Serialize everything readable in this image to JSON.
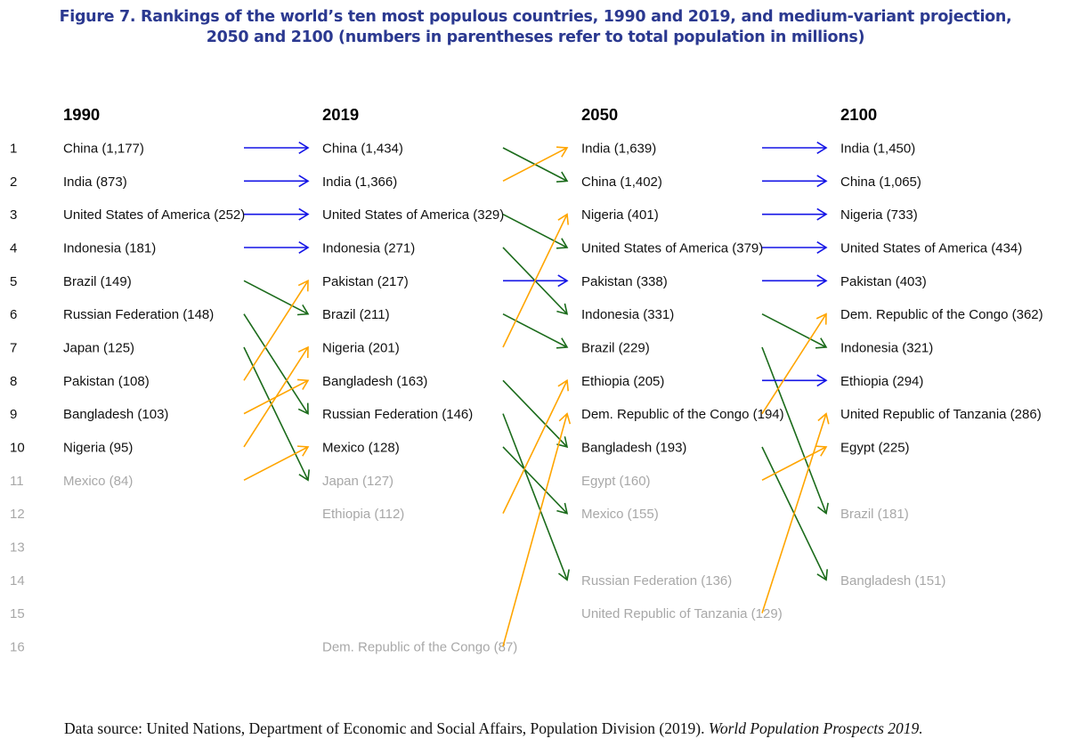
{
  "title_line1": "Figure 7. Rankings of the world’s ten most populous countries, 1990 and 2019, and medium-variant projection,",
  "title_line2": "2050 and 2100 (numbers in parentheses refer to total population in millions)",
  "footer": {
    "source_text": "Data source: United Nations, Department of Economic and Social Affairs, Population Division (2019). ",
    "source_italic": "World Population Prospects 2019."
  },
  "colors": {
    "title": "#2B3990",
    "same_rank": "#1414E6",
    "rank_down": "#1B6B1B",
    "rank_up": "#FFA500",
    "top_ten_text": "#111111",
    "outside_top_ten_text": "#A8A8A8"
  },
  "chart_data": {
    "type": "table",
    "title": "Rankings of the world’s ten most populous countries, 1990 and 2019, and medium-variant projection, 2050 and 2100",
    "unit": "millions",
    "ranks": [
      1,
      2,
      3,
      4,
      5,
      6,
      7,
      8,
      9,
      10,
      11,
      12,
      13,
      14,
      15,
      16
    ],
    "top_n": 10,
    "columns": [
      {
        "year": "1990",
        "entries": [
          {
            "rank": 1,
            "country": "China",
            "pop": "1,177"
          },
          {
            "rank": 2,
            "country": "India",
            "pop": "873"
          },
          {
            "rank": 3,
            "country": "United States of America",
            "pop": "252"
          },
          {
            "rank": 4,
            "country": "Indonesia",
            "pop": "181"
          },
          {
            "rank": 5,
            "country": "Brazil",
            "pop": "149"
          },
          {
            "rank": 6,
            "country": "Russian Federation",
            "pop": "148"
          },
          {
            "rank": 7,
            "country": "Japan",
            "pop": "125"
          },
          {
            "rank": 8,
            "country": "Pakistan",
            "pop": "108"
          },
          {
            "rank": 9,
            "country": "Bangladesh",
            "pop": "103"
          },
          {
            "rank": 10,
            "country": "Nigeria",
            "pop": "95"
          },
          {
            "rank": 11,
            "country": "Mexico",
            "pop": "84"
          }
        ]
      },
      {
        "year": "2019",
        "entries": [
          {
            "rank": 1,
            "country": "China",
            "pop": "1,434"
          },
          {
            "rank": 2,
            "country": "India",
            "pop": "1,366"
          },
          {
            "rank": 3,
            "country": "United States of America",
            "pop": "329"
          },
          {
            "rank": 4,
            "country": "Indonesia",
            "pop": "271"
          },
          {
            "rank": 5,
            "country": "Pakistan",
            "pop": "217"
          },
          {
            "rank": 6,
            "country": "Brazil",
            "pop": "211"
          },
          {
            "rank": 7,
            "country": "Nigeria",
            "pop": "201"
          },
          {
            "rank": 8,
            "country": "Bangladesh",
            "pop": "163"
          },
          {
            "rank": 9,
            "country": "Russian Federation",
            "pop": "146"
          },
          {
            "rank": 10,
            "country": "Mexico",
            "pop": "128"
          },
          {
            "rank": 11,
            "country": "Japan",
            "pop": "127"
          },
          {
            "rank": 12,
            "country": "Ethiopia",
            "pop": "112"
          },
          {
            "rank": 16,
            "country": "Dem. Republic of the Congo",
            "pop": "87"
          }
        ]
      },
      {
        "year": "2050",
        "entries": [
          {
            "rank": 1,
            "country": "India",
            "pop": "1,639"
          },
          {
            "rank": 2,
            "country": "China",
            "pop": "1,402"
          },
          {
            "rank": 3,
            "country": "Nigeria",
            "pop": "401"
          },
          {
            "rank": 4,
            "country": "United States of America",
            "pop": "379"
          },
          {
            "rank": 5,
            "country": "Pakistan",
            "pop": "338"
          },
          {
            "rank": 6,
            "country": "Indonesia",
            "pop": "331"
          },
          {
            "rank": 7,
            "country": "Brazil",
            "pop": "229"
          },
          {
            "rank": 8,
            "country": "Ethiopia",
            "pop": "205"
          },
          {
            "rank": 9,
            "country": "Dem. Republic of the Congo",
            "pop": "194"
          },
          {
            "rank": 10,
            "country": "Bangladesh",
            "pop": "193"
          },
          {
            "rank": 11,
            "country": "Egypt",
            "pop": "160"
          },
          {
            "rank": 12,
            "country": "Mexico",
            "pop": "155"
          },
          {
            "rank": 14,
            "country": "Russian Federation",
            "pop": "136"
          },
          {
            "rank": 15,
            "country": "United Republic of Tanzania",
            "pop": "129"
          }
        ]
      },
      {
        "year": "2100",
        "entries": [
          {
            "rank": 1,
            "country": "India",
            "pop": "1,450"
          },
          {
            "rank": 2,
            "country": "China",
            "pop": "1,065"
          },
          {
            "rank": 3,
            "country": "Nigeria",
            "pop": "733"
          },
          {
            "rank": 4,
            "country": "United States of America",
            "pop": "434"
          },
          {
            "rank": 5,
            "country": "Pakistan",
            "pop": "403"
          },
          {
            "rank": 6,
            "country": "Dem. Republic of the Congo",
            "pop": "362"
          },
          {
            "rank": 7,
            "country": "Indonesia",
            "pop": "321"
          },
          {
            "rank": 8,
            "country": "Ethiopia",
            "pop": "294"
          },
          {
            "rank": 9,
            "country": "United Republic of Tanzania",
            "pop": "286"
          },
          {
            "rank": 10,
            "country": "Egypt",
            "pop": "225"
          },
          {
            "rank": 12,
            "country": "Brazil",
            "pop": "181"
          },
          {
            "rank": 14,
            "country": "Bangladesh",
            "pop": "151"
          }
        ]
      }
    ],
    "transitions": [
      {
        "from_year": "1990",
        "to_year": "2019",
        "moves": [
          {
            "country": "China",
            "from": 1,
            "to": 1
          },
          {
            "country": "India",
            "from": 2,
            "to": 2
          },
          {
            "country": "United States of America",
            "from": 3,
            "to": 3
          },
          {
            "country": "Indonesia",
            "from": 4,
            "to": 4
          },
          {
            "country": "Brazil",
            "from": 5,
            "to": 6
          },
          {
            "country": "Russian Federation",
            "from": 6,
            "to": 9
          },
          {
            "country": "Japan",
            "from": 7,
            "to": 11
          },
          {
            "country": "Pakistan",
            "from": 8,
            "to": 5
          },
          {
            "country": "Bangladesh",
            "from": 9,
            "to": 8
          },
          {
            "country": "Nigeria",
            "from": 10,
            "to": 7
          },
          {
            "country": "Mexico",
            "from": 11,
            "to": 10
          }
        ]
      },
      {
        "from_year": "2019",
        "to_year": "2050",
        "moves": [
          {
            "country": "China",
            "from": 1,
            "to": 2
          },
          {
            "country": "India",
            "from": 2,
            "to": 1
          },
          {
            "country": "United States of America",
            "from": 3,
            "to": 4
          },
          {
            "country": "Indonesia",
            "from": 4,
            "to": 6
          },
          {
            "country": "Pakistan",
            "from": 5,
            "to": 5
          },
          {
            "country": "Brazil",
            "from": 6,
            "to": 7
          },
          {
            "country": "Nigeria",
            "from": 7,
            "to": 3
          },
          {
            "country": "Bangladesh",
            "from": 8,
            "to": 10
          },
          {
            "country": "Russian Federation",
            "from": 9,
            "to": 14
          },
          {
            "country": "Mexico",
            "from": 10,
            "to": 12
          },
          {
            "country": "Ethiopia",
            "from": 12,
            "to": 8
          },
          {
            "country": "Dem. Republic of the Congo",
            "from": 16,
            "to": 9
          }
        ]
      },
      {
        "from_year": "2050",
        "to_year": "2100",
        "moves": [
          {
            "country": "India",
            "from": 1,
            "to": 1
          },
          {
            "country": "China",
            "from": 2,
            "to": 2
          },
          {
            "country": "Nigeria",
            "from": 3,
            "to": 3
          },
          {
            "country": "United States of America",
            "from": 4,
            "to": 4
          },
          {
            "country": "Pakistan",
            "from": 5,
            "to": 5
          },
          {
            "country": "Indonesia",
            "from": 6,
            "to": 7
          },
          {
            "country": "Brazil",
            "from": 7,
            "to": 12
          },
          {
            "country": "Ethiopia",
            "from": 8,
            "to": 8
          },
          {
            "country": "Dem. Republic of the Congo",
            "from": 9,
            "to": 6
          },
          {
            "country": "Bangladesh",
            "from": 10,
            "to": 14
          },
          {
            "country": "Egypt",
            "from": 11,
            "to": 10
          },
          {
            "country": "United Republic of Tanzania",
            "from": 15,
            "to": 9
          }
        ]
      }
    ],
    "legend": {
      "same_rank": "blue arrow",
      "rank_down": "green arrow",
      "rank_up": "orange arrow"
    }
  }
}
